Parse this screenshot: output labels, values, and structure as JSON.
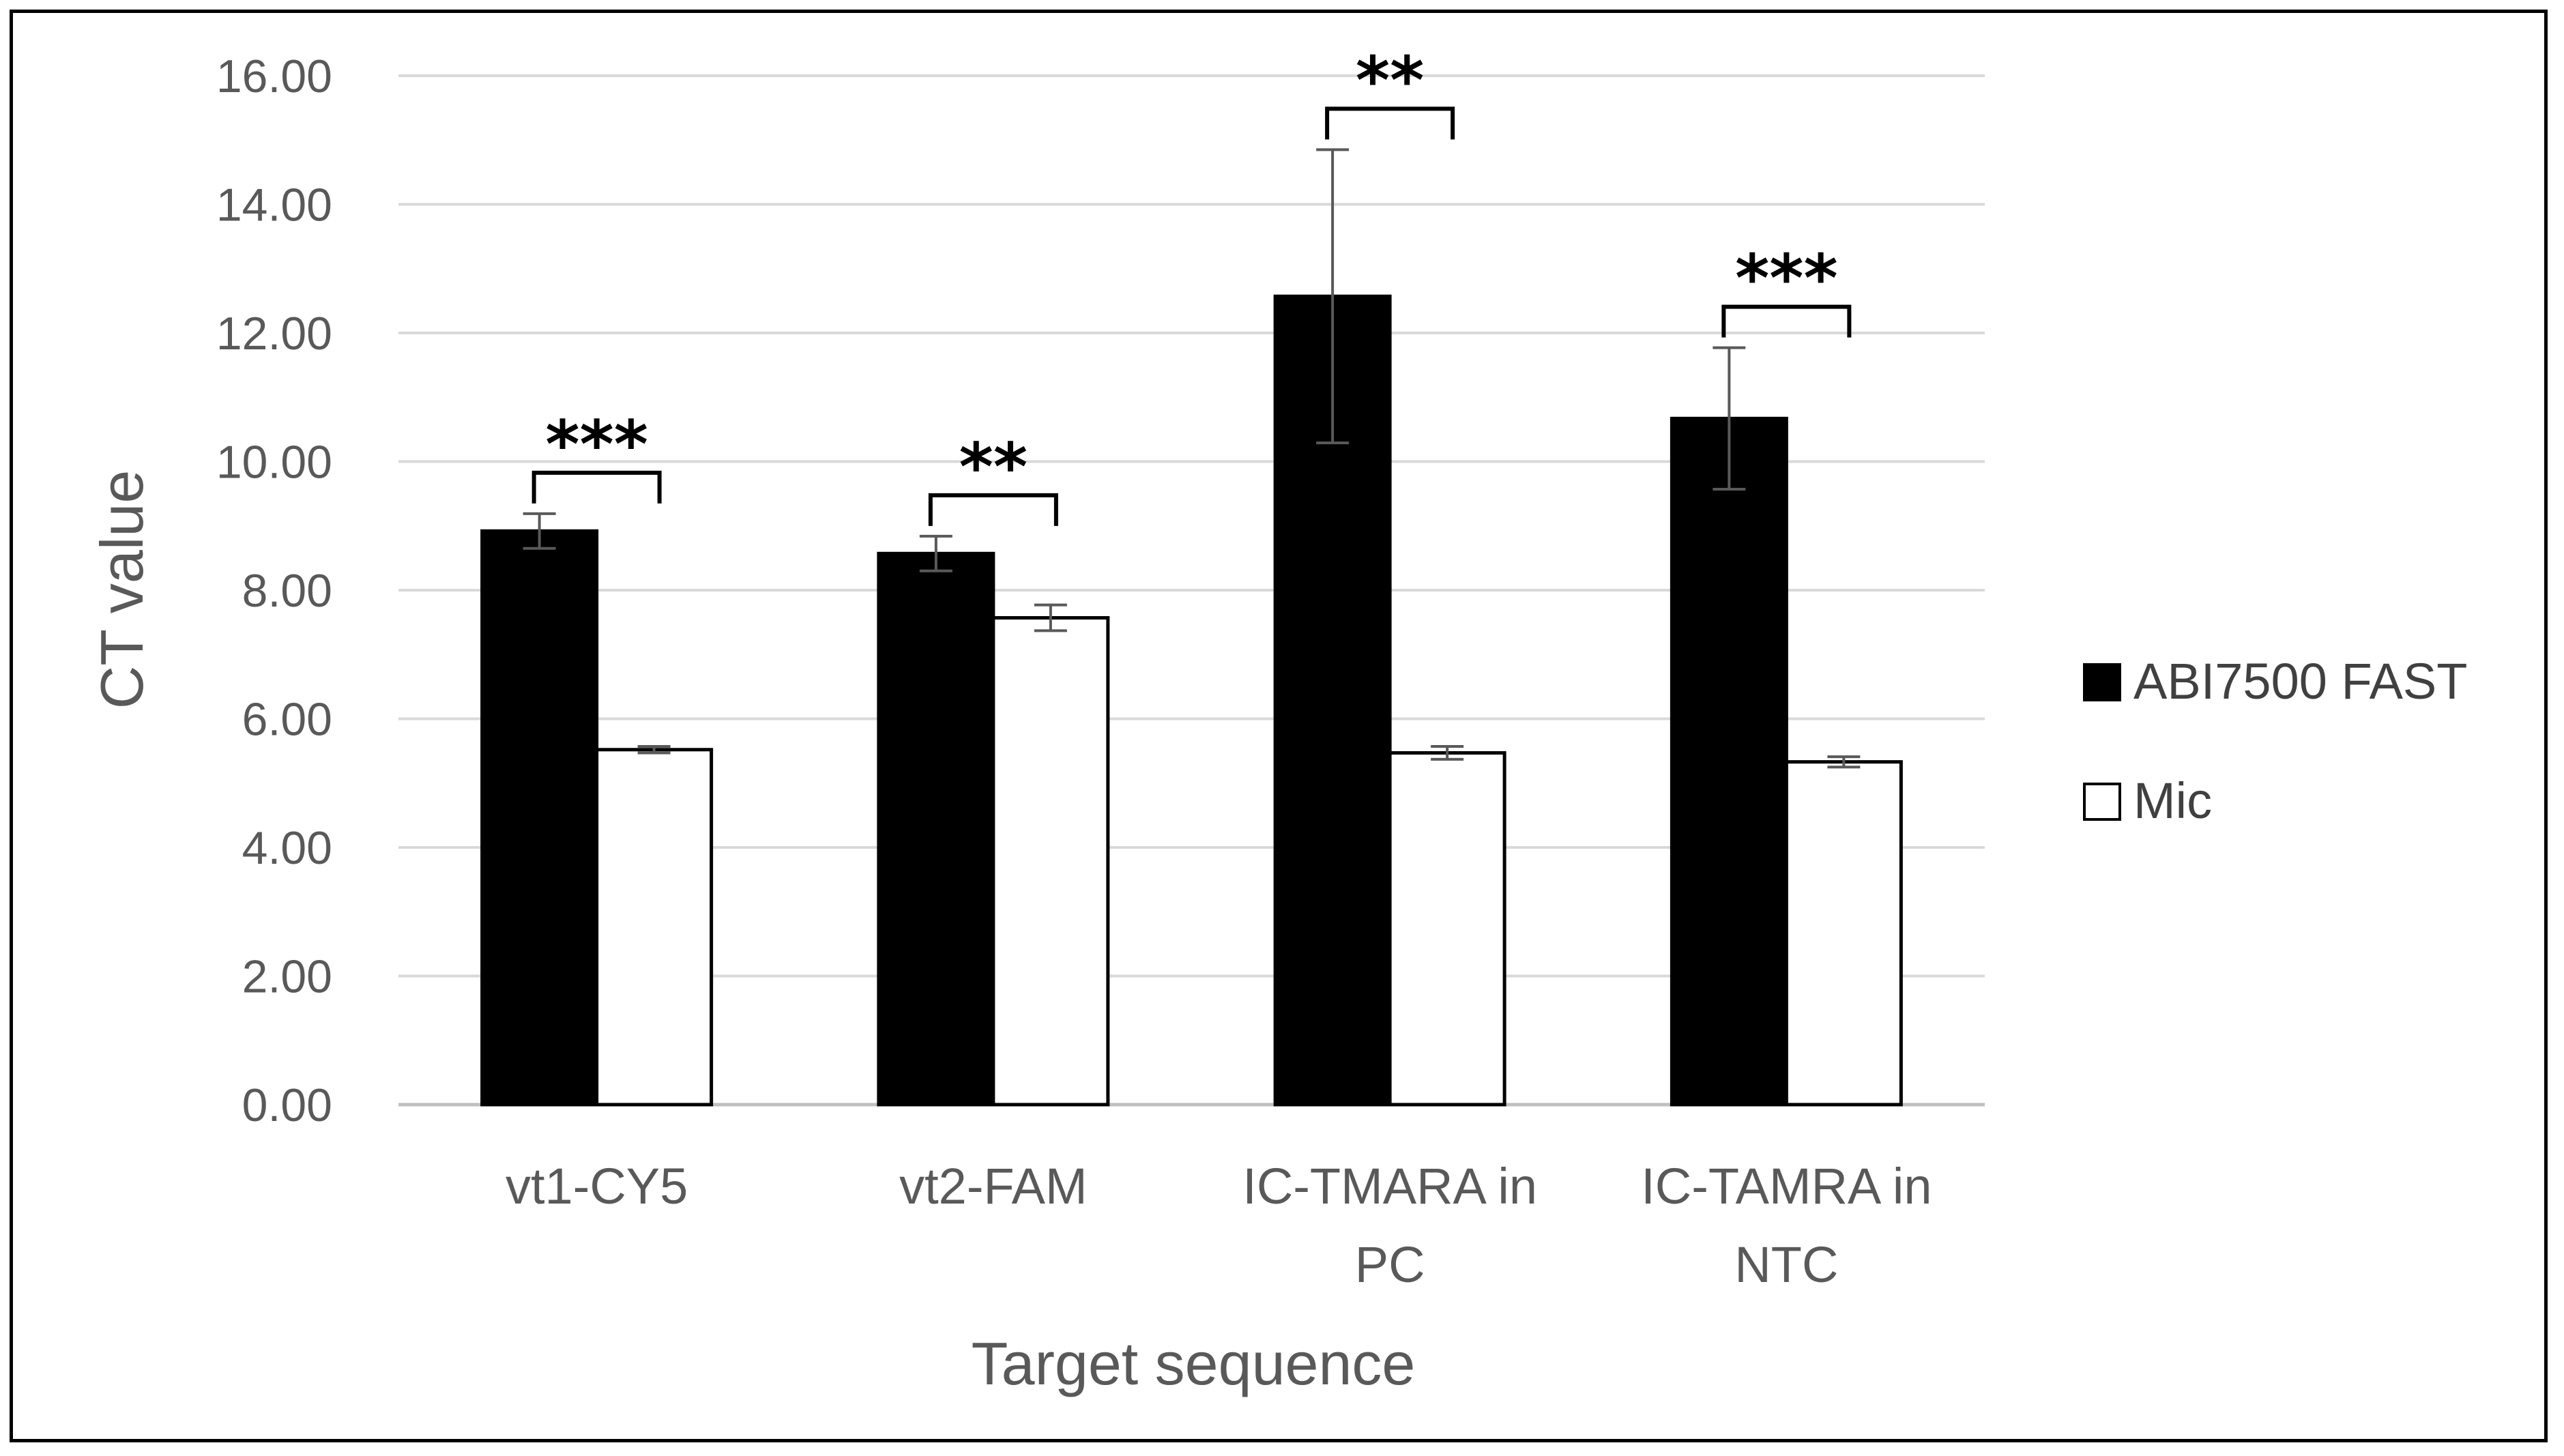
{
  "chart_data": {
    "type": "bar",
    "title": "",
    "xlabel": "Target sequence",
    "ylabel": "CT value",
    "ylim": [
      0,
      16
    ],
    "yticks": [
      "0.00",
      "2.00",
      "4.00",
      "6.00",
      "8.00",
      "10.00",
      "12.00",
      "14.00",
      "16.00"
    ],
    "grid": true,
    "legend_position": "right",
    "categories": [
      [
        "vt1-CY5"
      ],
      [
        "vt2-FAM"
      ],
      [
        "IC-TMARA in",
        "PC"
      ],
      [
        "IC-TAMRA in",
        "NTC"
      ]
    ],
    "series": [
      {
        "name": "ABI7500 FAST",
        "color": "#000000",
        "values": [
          8.92,
          8.57,
          12.57,
          10.67
        ],
        "errors": [
          0.27,
          0.27,
          2.28,
          1.1
        ]
      },
      {
        "name": "Mic",
        "color": "#ffffff",
        "values": [
          5.52,
          7.57,
          5.47,
          5.33
        ],
        "errors": [
          0.05,
          0.2,
          0.1,
          0.08
        ]
      }
    ],
    "significance": [
      "***",
      "**",
      "**",
      "***"
    ]
  }
}
